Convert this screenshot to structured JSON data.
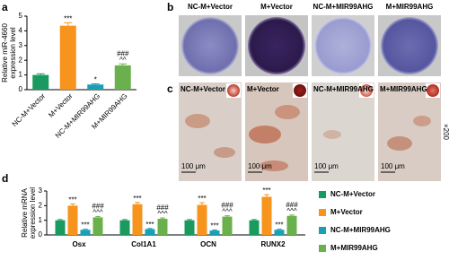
{
  "panel_labels": [
    "a",
    "b",
    "c",
    "d"
  ],
  "chart_data": [
    {
      "type": "bar",
      "ylabel": [
        "Relative miR-4660",
        "expression level"
      ],
      "categories": [
        "NC-M+Vector",
        "M+Vector",
        "NC-M+MIR99AHG",
        "M+MIR99AHG"
      ],
      "values": [
        1.0,
        4.35,
        0.35,
        1.65
      ],
      "errors": [
        0.08,
        0.2,
        0.05,
        0.1
      ],
      "annotations": [
        null,
        [
          "***"
        ],
        [
          "*"
        ],
        [
          "###",
          "^^"
        ]
      ],
      "colors": [
        "#1a9a5e",
        "#f7941d",
        "#1a9fb3",
        "#6ab04c"
      ],
      "ylim": [
        0,
        5
      ],
      "yticks": [
        0,
        1,
        2,
        3,
        4,
        5
      ]
    },
    {
      "type": "grouped_bar",
      "ylabel": [
        "Relative mRNA",
        "expression level"
      ],
      "categories": [
        "Osx",
        "Col1A1",
        "OCN",
        "RUNX2"
      ],
      "series": [
        {
          "name": "NC-M+Vector",
          "color": "#1a9a5e",
          "values": [
            1.0,
            1.0,
            1.0,
            1.0
          ],
          "errors": [
            0.05,
            0.05,
            0.05,
            0.05
          ],
          "annotations": [
            null,
            null,
            null,
            null
          ]
        },
        {
          "name": "M+Vector",
          "color": "#f7941d",
          "values": [
            2.0,
            2.1,
            2.05,
            2.6
          ],
          "errors": [
            0.12,
            0.12,
            0.15,
            0.15
          ],
          "annotations": [
            [
              "***"
            ],
            [
              "***"
            ],
            [
              "***"
            ],
            [
              "***"
            ]
          ]
        },
        {
          "name": "NC-M+MIR99AHG",
          "color": "#1a9fb3",
          "values": [
            0.35,
            0.4,
            0.3,
            0.35
          ],
          "errors": [
            0.04,
            0.04,
            0.04,
            0.04
          ],
          "annotations": [
            [
              "***"
            ],
            [
              "***"
            ],
            [
              "***"
            ],
            [
              "***"
            ]
          ]
        },
        {
          "name": "M+MIR99AHG",
          "color": "#6ab04c",
          "values": [
            1.2,
            1.1,
            1.25,
            1.3
          ],
          "errors": [
            0.06,
            0.06,
            0.06,
            0.06
          ],
          "annotations": [
            [
              "###",
              "^^^"
            ],
            [
              "###",
              "^^^"
            ],
            [
              "###",
              "^^^"
            ],
            [
              "###",
              "^^^"
            ]
          ]
        }
      ],
      "ylim": [
        0,
        3
      ],
      "yticks": [
        0,
        1,
        2,
        3
      ],
      "legend": "right"
    }
  ],
  "images_b": {
    "labels": [
      "NC-M+Vector",
      "M+Vector",
      "NC-M+MIR99AHG",
      "M+MIR99AHG"
    ]
  },
  "images_c": {
    "labels": [
      "NC-M+Vector",
      "M+Vector",
      "NC-M+MIR99AHG",
      "M+MIR99AHG"
    ],
    "scale_bar": "100 μm",
    "magnification": "×200"
  }
}
